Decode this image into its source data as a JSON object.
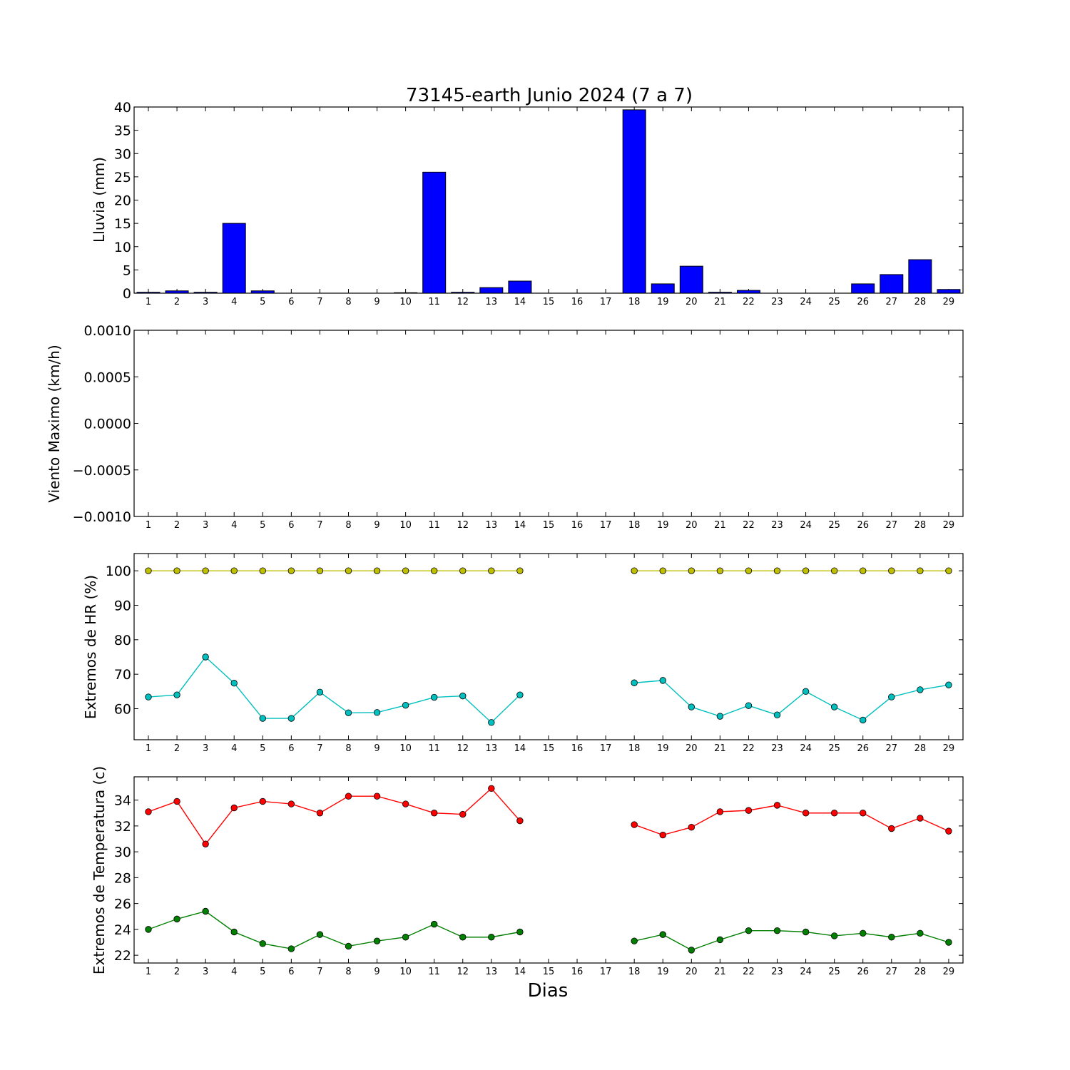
{
  "chart_data": [
    {
      "type": "bar",
      "title": "73145-earth Junio 2024  (7 a 7)",
      "xlabel": "",
      "ylabel": "Lluvia (mm)",
      "categories": [
        "1",
        "2",
        "3",
        "4",
        "5",
        "6",
        "7",
        "8",
        "9",
        "10",
        "11",
        "12",
        "13",
        "14",
        "15",
        "16",
        "17",
        "18",
        "19",
        "20",
        "21",
        "22",
        "23",
        "24",
        "25",
        "26",
        "27",
        "28",
        "29"
      ],
      "values": [
        0.2,
        0.5,
        0.2,
        15.0,
        0.5,
        0,
        0,
        0,
        0,
        0.1,
        26.0,
        0.2,
        1.2,
        2.6,
        null,
        null,
        null,
        39.4,
        2.0,
        5.8,
        0.2,
        0.6,
        0,
        0,
        0,
        2.0,
        4.0,
        7.2,
        0.8
      ],
      "ylim": [
        0,
        40
      ],
      "yticks": [
        0,
        5,
        10,
        15,
        20,
        25,
        30,
        35,
        40
      ],
      "bar_color": "#0000ff"
    },
    {
      "type": "line",
      "title": "",
      "xlabel": "",
      "ylabel": "Viento Maximo (km/h)",
      "categories": [
        "1",
        "2",
        "3",
        "4",
        "5",
        "6",
        "7",
        "8",
        "9",
        "10",
        "11",
        "12",
        "13",
        "14",
        "15",
        "16",
        "17",
        "18",
        "19",
        "20",
        "21",
        "22",
        "23",
        "24",
        "25",
        "26",
        "27",
        "28",
        "29"
      ],
      "series": [],
      "ylim": [
        -0.001,
        0.001
      ],
      "yticks": [
        "−0.0010",
        "−0.0005",
        "0.0000",
        "0.0005",
        "0.0010"
      ]
    },
    {
      "type": "line",
      "title": "",
      "xlabel": "",
      "ylabel": "Extremos de HR (%)",
      "categories": [
        "1",
        "2",
        "3",
        "4",
        "5",
        "6",
        "7",
        "8",
        "9",
        "10",
        "11",
        "12",
        "13",
        "14",
        "15",
        "16",
        "17",
        "18",
        "19",
        "20",
        "21",
        "22",
        "23",
        "24",
        "25",
        "26",
        "27",
        "28",
        "29"
      ],
      "series": [
        {
          "color": "#bfbf00",
          "values": [
            100,
            100,
            100,
            100,
            100,
            100,
            100,
            100,
            100,
            100,
            100,
            100,
            100,
            100,
            null,
            null,
            null,
            100,
            100,
            100,
            100,
            100,
            100,
            100,
            100,
            100,
            100,
            100,
            100
          ]
        },
        {
          "color": "#00bfbf",
          "values": [
            63.4,
            64,
            75,
            67.4,
            57.2,
            57.2,
            64.8,
            58.8,
            58.9,
            61,
            63.3,
            63.7,
            56,
            64,
            null,
            null,
            null,
            67.5,
            68.2,
            60.5,
            57.8,
            60.9,
            58.2,
            65,
            60.5,
            56.7,
            63.4,
            65.5,
            66.9
          ]
        }
      ],
      "ylim": [
        51,
        105
      ],
      "yticks": [
        60,
        70,
        80,
        90,
        100
      ]
    },
    {
      "type": "line",
      "title": "",
      "xlabel": "Dias",
      "ylabel": "Extremos de Temperatura (c)",
      "categories": [
        "1",
        "2",
        "3",
        "4",
        "5",
        "6",
        "7",
        "8",
        "9",
        "10",
        "11",
        "12",
        "13",
        "14",
        "15",
        "16",
        "17",
        "18",
        "19",
        "20",
        "21",
        "22",
        "23",
        "24",
        "25",
        "26",
        "27",
        "28",
        "29"
      ],
      "series": [
        {
          "color": "#ff0000",
          "values": [
            33.1,
            33.9,
            30.6,
            33.4,
            33.9,
            33.7,
            33.0,
            34.3,
            34.3,
            33.7,
            33.0,
            32.9,
            34.9,
            32.4,
            null,
            null,
            null,
            32.1,
            31.3,
            31.9,
            33.1,
            33.2,
            33.6,
            33.0,
            33.0,
            33.0,
            31.8,
            32.6,
            31.6
          ]
        },
        {
          "color": "#007f00",
          "values": [
            24.0,
            24.8,
            25.4,
            23.8,
            22.9,
            22.5,
            23.6,
            22.7,
            23.1,
            23.4,
            24.4,
            23.4,
            23.4,
            23.8,
            null,
            null,
            null,
            23.1,
            23.6,
            22.4,
            23.2,
            23.9,
            23.9,
            23.8,
            23.5,
            23.7,
            23.4,
            23.7,
            23.0
          ]
        }
      ],
      "ylim": [
        21.4,
        35.8
      ],
      "yticks": [
        22,
        24,
        26,
        28,
        30,
        32,
        34
      ]
    }
  ]
}
